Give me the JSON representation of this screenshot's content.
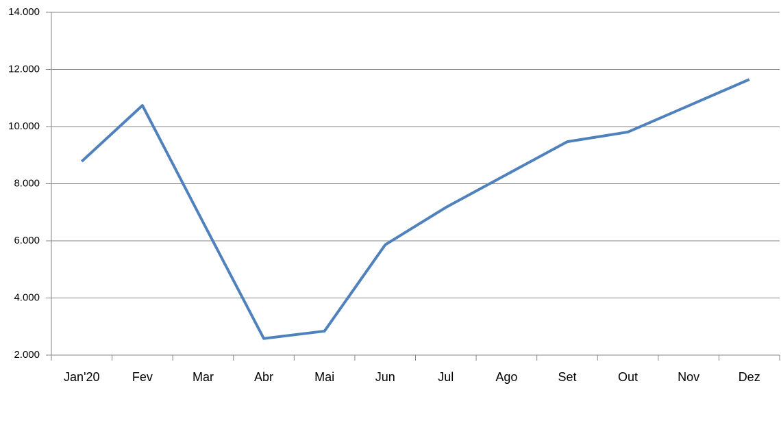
{
  "chart_data": {
    "type": "line",
    "categories": [
      "Jan'20",
      "Fev",
      "Mar",
      "Abr",
      "Mai",
      "Jun",
      "Jul",
      "Ago",
      "Set",
      "Out",
      "Nov",
      "Dez"
    ],
    "series": [
      {
        "color": "#4f81bd",
        "values": [
          8780,
          10740,
          6650,
          2580,
          2840,
          5860,
          7170,
          8320,
          9470,
          9810,
          10730,
          11650
        ]
      }
    ],
    "ylim": [
      2000,
      14000
    ],
    "yticks": [
      {
        "value": 2000,
        "label": "2.000"
      },
      {
        "value": 4000,
        "label": "4.000"
      },
      {
        "value": 6000,
        "label": "6.000"
      },
      {
        "value": 8000,
        "label": "8.000"
      },
      {
        "value": 10000,
        "label": "10.000"
      },
      {
        "value": 12000,
        "label": "12.000"
      },
      {
        "value": 14000,
        "label": "14.000"
      }
    ],
    "grid": true
  }
}
